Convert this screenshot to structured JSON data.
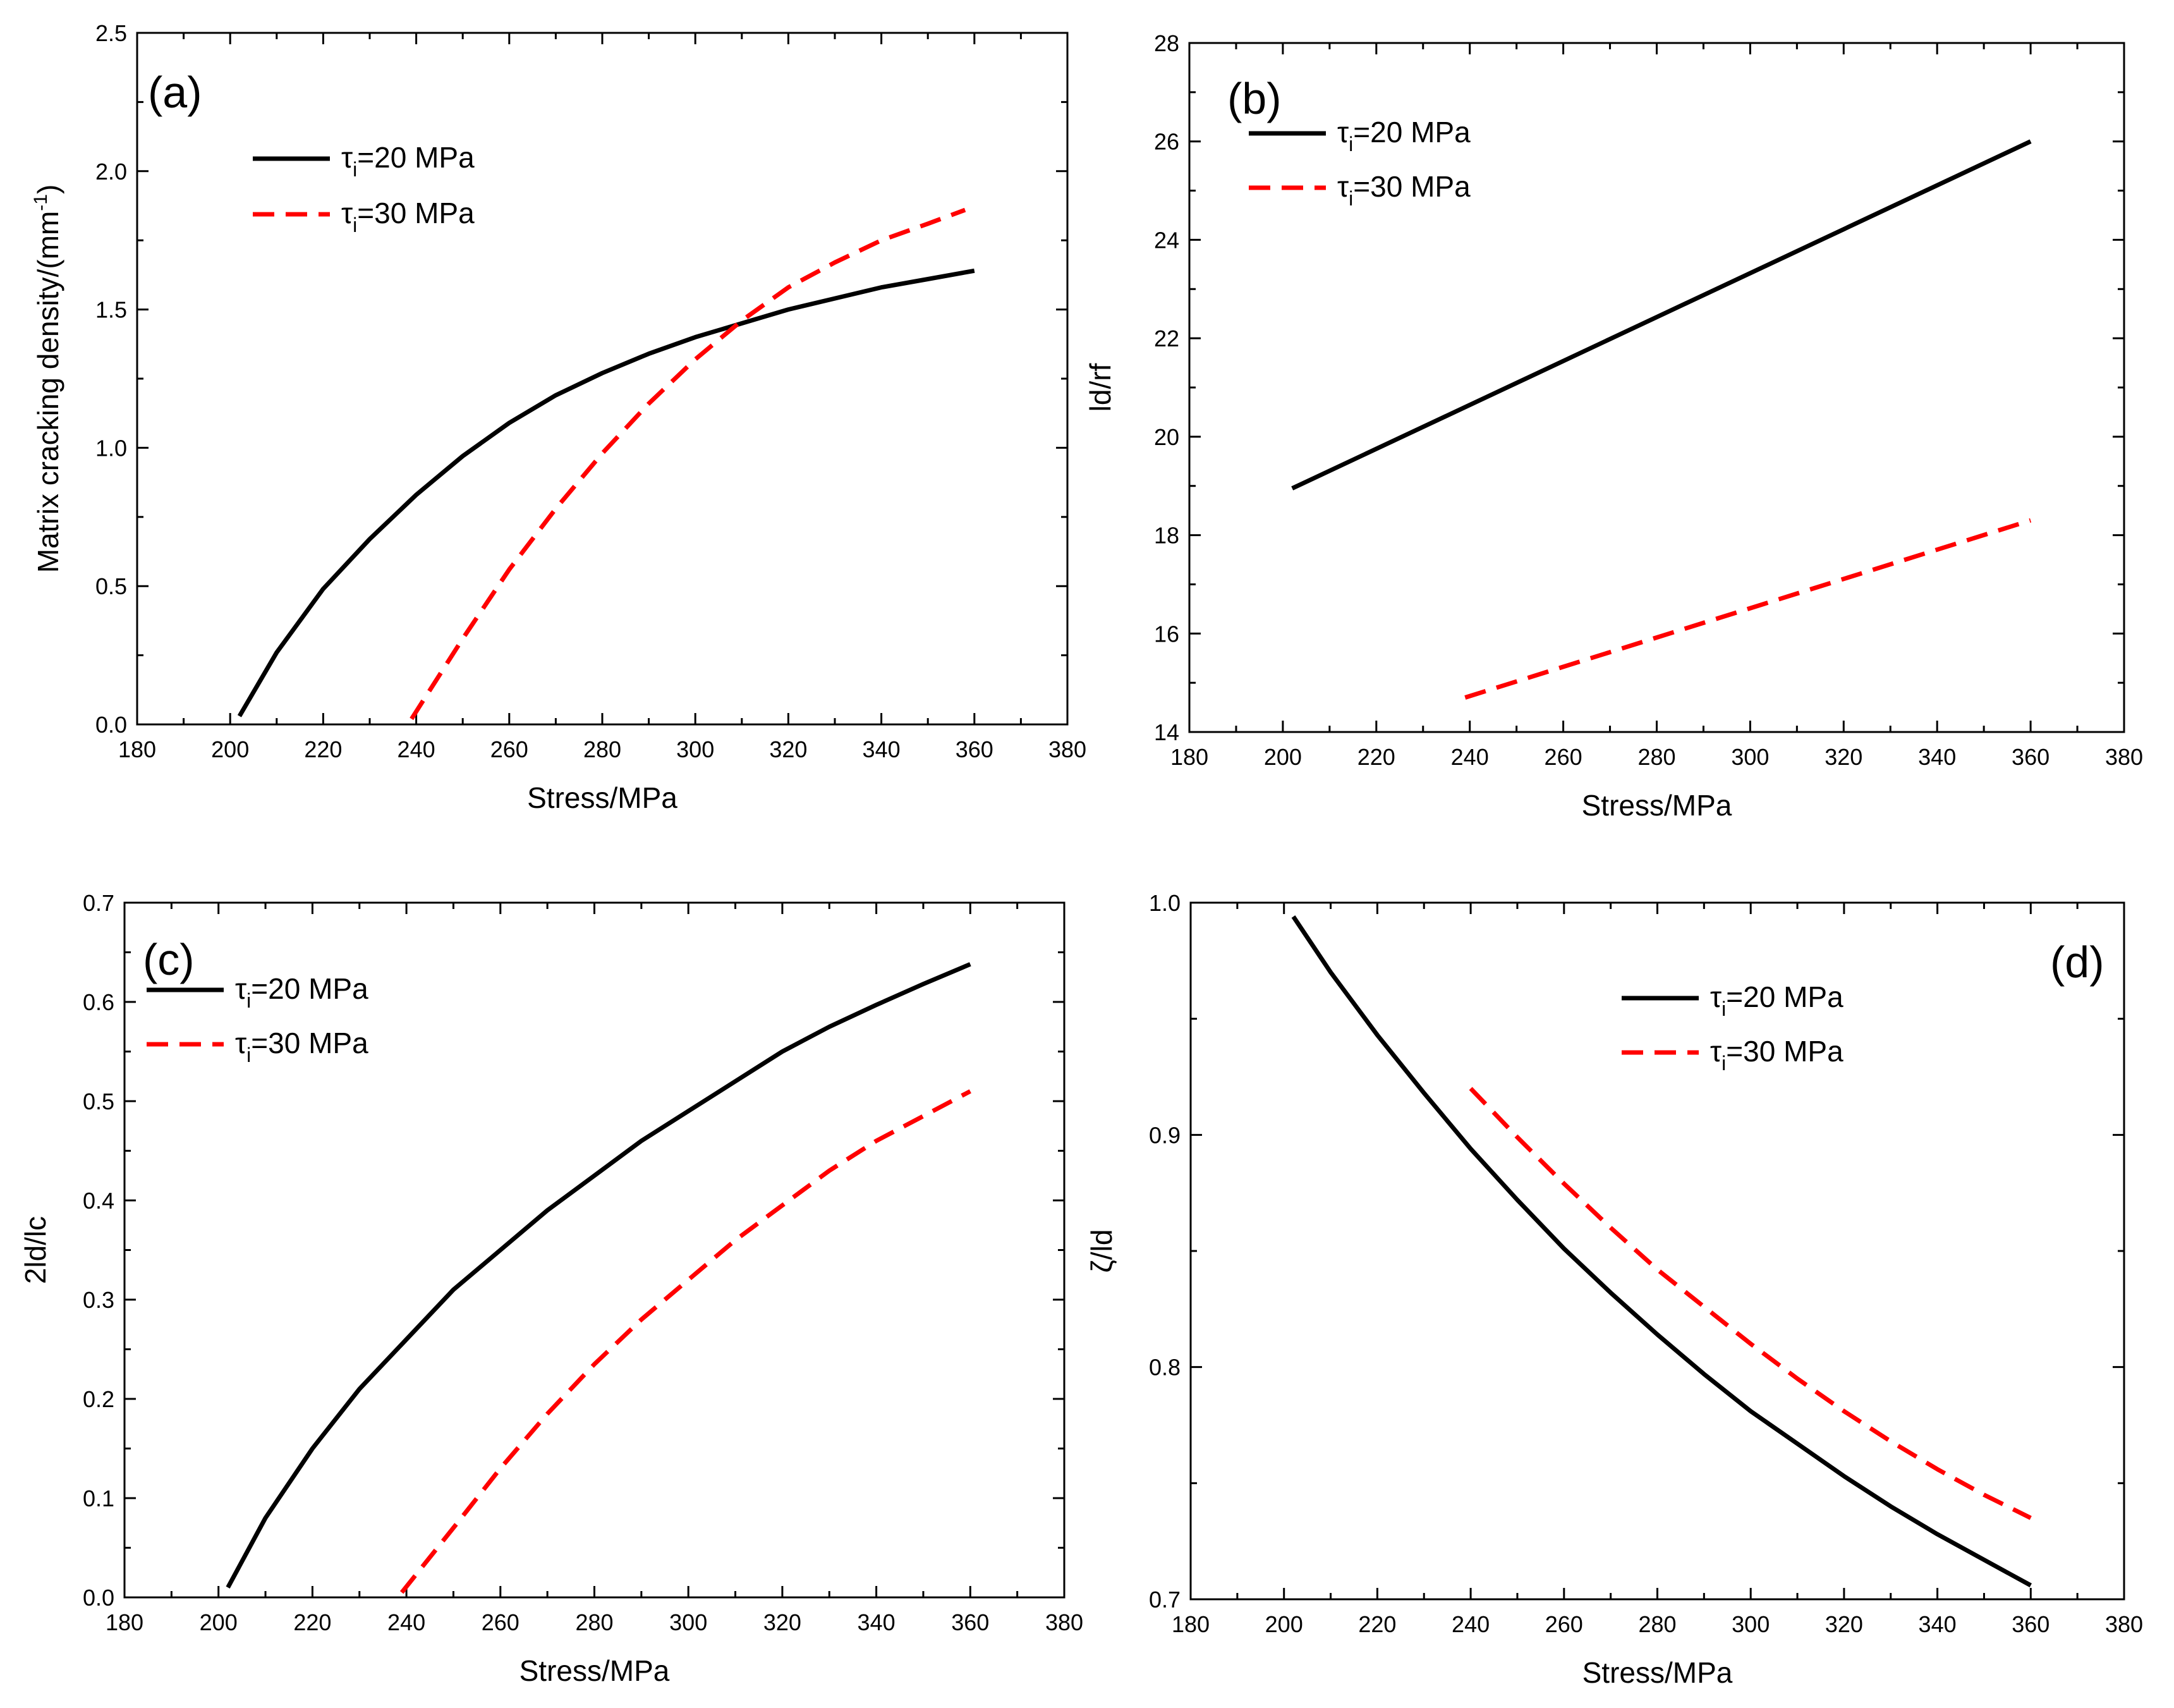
{
  "figure": {
    "colors": {
      "series_20": "#000000",
      "series_30": "#ff0000"
    }
  },
  "chart_data": [
    {
      "id": "a",
      "type": "line",
      "panel_label": "(a)",
      "xlabel": "Stress/MPa",
      "ylabel_main": "Matrix cracking density/(mm",
      "ylabel_sup": "-1",
      "ylabel_close": ")",
      "xlim": [
        180,
        380
      ],
      "ylim": [
        0,
        2.5
      ],
      "xticks": [
        180,
        200,
        220,
        240,
        260,
        280,
        300,
        320,
        340,
        360,
        380
      ],
      "yticks": [
        0.0,
        0.5,
        1.0,
        1.5,
        2.0,
        2.5
      ],
      "ytick_labels": [
        "0.0",
        "0.5",
        "1.0",
        "1.5",
        "2.0",
        "2.5"
      ],
      "legend": [
        {
          "symbol": "τ",
          "sub": "i",
          "rest": "=20 MPa"
        },
        {
          "symbol": "τ",
          "sub": "i",
          "rest": "=30 MPa"
        }
      ],
      "series": [
        {
          "name": "τi=20 MPa",
          "style": "solid",
          "x": [
            202,
            210,
            220,
            230,
            240,
            250,
            260,
            270,
            280,
            290,
            300,
            310,
            320,
            330,
            340,
            350,
            360
          ],
          "y": [
            0.03,
            0.26,
            0.49,
            0.67,
            0.83,
            0.97,
            1.09,
            1.19,
            1.27,
            1.34,
            1.4,
            1.45,
            1.5,
            1.54,
            1.58,
            1.61,
            1.64
          ]
        },
        {
          "name": "τi=30 MPa",
          "style": "dashed",
          "x": [
            239,
            250,
            260,
            270,
            280,
            290,
            300,
            310,
            320,
            330,
            340,
            350,
            358
          ],
          "y": [
            0.02,
            0.31,
            0.56,
            0.78,
            0.98,
            1.16,
            1.32,
            1.46,
            1.58,
            1.67,
            1.75,
            1.81,
            1.86
          ]
        }
      ]
    },
    {
      "id": "b",
      "type": "line",
      "panel_label": "(b)",
      "xlabel": "Stress/MPa",
      "ylabel_main": "ld/rf",
      "xlim": [
        180,
        380
      ],
      "ylim": [
        14,
        28
      ],
      "xticks": [
        180,
        200,
        220,
        240,
        260,
        280,
        300,
        320,
        340,
        360,
        380
      ],
      "yticks": [
        14,
        16,
        18,
        20,
        22,
        24,
        26,
        28
      ],
      "ytick_labels": [
        "14",
        "16",
        "18",
        "20",
        "22",
        "24",
        "26",
        "28"
      ],
      "legend": [
        {
          "symbol": "τ",
          "sub": "i",
          "rest": "=20 MPa"
        },
        {
          "symbol": "τ",
          "sub": "i",
          "rest": "=30 MPa"
        }
      ],
      "series": [
        {
          "name": "τi=20 MPa",
          "style": "solid",
          "x": [
            202,
            360
          ],
          "y": [
            18.95,
            26.0
          ]
        },
        {
          "name": "τi=30 MPa",
          "style": "dashed",
          "x": [
            239,
            360
          ],
          "y": [
            14.7,
            18.3
          ]
        }
      ]
    },
    {
      "id": "c",
      "type": "line",
      "panel_label": "(c)",
      "xlabel": "Stress/MPa",
      "ylabel_main": "2ld/lc",
      "xlim": [
        180,
        380
      ],
      "ylim": [
        0,
        0.7
      ],
      "xticks": [
        180,
        200,
        220,
        240,
        260,
        280,
        300,
        320,
        340,
        360,
        380
      ],
      "yticks": [
        0.0,
        0.1,
        0.2,
        0.3,
        0.4,
        0.5,
        0.6,
        0.7
      ],
      "ytick_labels": [
        "0.0",
        "0.1",
        "0.2",
        "0.3",
        "0.4",
        "0.5",
        "0.6",
        "0.7"
      ],
      "legend": [
        {
          "symbol": "τ",
          "sub": "i",
          "rest": "=20 MPa"
        },
        {
          "symbol": "τ",
          "sub": "i",
          "rest": "=30 MPa"
        }
      ],
      "series": [
        {
          "name": "τi=20 MPa",
          "style": "solid",
          "x": [
            202,
            210,
            220,
            230,
            240,
            250,
            260,
            270,
            280,
            290,
            300,
            310,
            320,
            330,
            340,
            350,
            360
          ],
          "y": [
            0.01,
            0.08,
            0.15,
            0.21,
            0.26,
            0.31,
            0.35,
            0.39,
            0.425,
            0.46,
            0.49,
            0.52,
            0.55,
            0.575,
            0.597,
            0.618,
            0.638
          ]
        },
        {
          "name": "τi=30 MPa",
          "style": "dashed",
          "x": [
            239,
            250,
            260,
            270,
            280,
            290,
            300,
            310,
            320,
            330,
            340,
            350,
            360
          ],
          "y": [
            0.005,
            0.07,
            0.13,
            0.185,
            0.235,
            0.28,
            0.32,
            0.36,
            0.395,
            0.43,
            0.46,
            0.485,
            0.51
          ]
        }
      ]
    },
    {
      "id": "d",
      "type": "line",
      "panel_label": "(d)",
      "xlabel": "Stress/MPa",
      "ylabel_main": "ζ/ld",
      "xlim": [
        180,
        380
      ],
      "ylim": [
        0.7,
        1.0
      ],
      "xticks": [
        180,
        200,
        220,
        240,
        260,
        280,
        300,
        320,
        340,
        360,
        380
      ],
      "yticks": [
        0.7,
        0.8,
        0.9,
        1.0
      ],
      "ytick_labels": [
        "0.7",
        "0.8",
        "0.9",
        "1.0"
      ],
      "legend": [
        {
          "symbol": "τ",
          "sub": "i",
          "rest": "=20 MPa"
        },
        {
          "symbol": "τ",
          "sub": "i",
          "rest": "=30 MPa"
        }
      ],
      "series": [
        {
          "name": "τi=20 MPa",
          "style": "solid",
          "x": [
            202,
            210,
            220,
            230,
            240,
            250,
            260,
            270,
            280,
            290,
            300,
            310,
            320,
            330,
            340,
            350,
            360
          ],
          "y": [
            0.994,
            0.97,
            0.943,
            0.918,
            0.894,
            0.872,
            0.851,
            0.832,
            0.814,
            0.797,
            0.781,
            0.767,
            0.753,
            0.74,
            0.728,
            0.717,
            0.706
          ]
        },
        {
          "name": "τi=30 MPa",
          "style": "dashed",
          "x": [
            240,
            250,
            260,
            270,
            280,
            290,
            300,
            310,
            320,
            330,
            340,
            350,
            360
          ],
          "y": [
            0.92,
            0.899,
            0.879,
            0.86,
            0.842,
            0.826,
            0.81,
            0.795,
            0.781,
            0.768,
            0.756,
            0.745,
            0.735
          ]
        }
      ]
    }
  ]
}
